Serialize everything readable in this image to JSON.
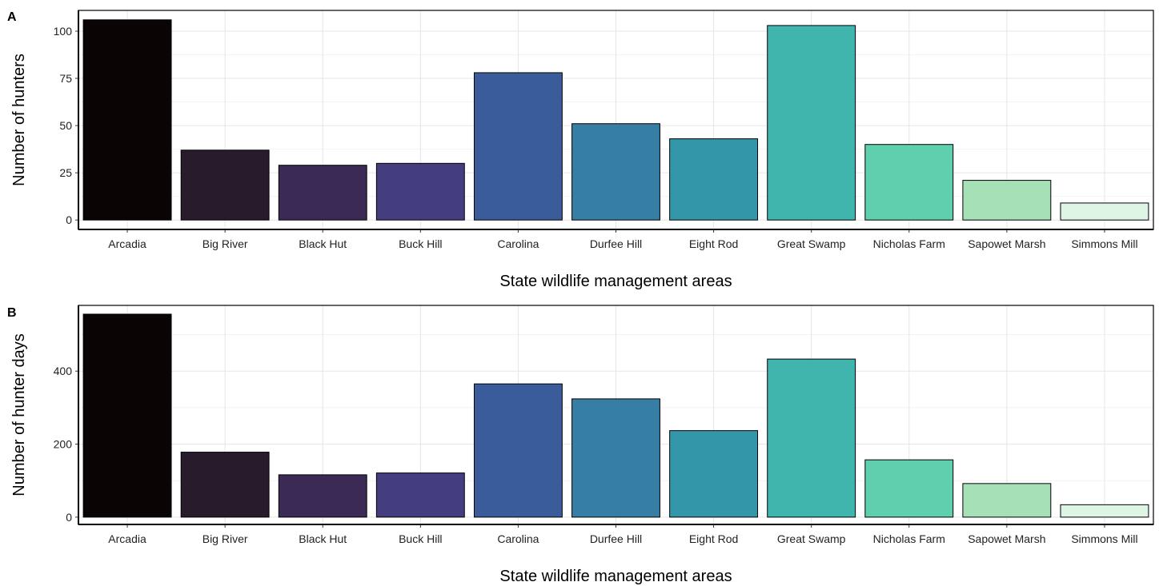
{
  "chart_data": [
    {
      "type": "bar",
      "panel_label": "A",
      "categories": [
        "Arcadia",
        "Big River",
        "Black Hut",
        "Buck Hill",
        "Carolina",
        "Durfee Hill",
        "Eight Rod",
        "Great Swamp",
        "Nicholas Farm",
        "Sapowet Marsh",
        "Simmons Mill"
      ],
      "values": [
        106,
        37,
        29,
        30,
        78,
        51,
        43,
        103,
        40,
        21,
        9
      ],
      "xlabel": "State wildlife management areas",
      "ylabel": "Number of hunters",
      "ylim": [
        -5,
        111
      ],
      "yticks": [
        0,
        25,
        50,
        75,
        100
      ],
      "grid": true
    },
    {
      "type": "bar",
      "panel_label": "B",
      "categories": [
        "Arcadia",
        "Big River",
        "Black Hut",
        "Buck Hill",
        "Carolina",
        "Durfee Hill",
        "Eight Rod",
        "Great Swamp",
        "Nicholas Farm",
        "Sapowet Marsh",
        "Simmons Mill"
      ],
      "values": [
        556,
        178,
        116,
        121,
        365,
        324,
        237,
        433,
        157,
        92,
        34
      ],
      "xlabel": "State wildlife management areas",
      "ylabel": "Number of hunter days",
      "ylim": [
        -20,
        580
      ],
      "yticks": [
        0,
        200,
        400
      ],
      "grid": true
    }
  ],
  "colors": [
    "#0b0405",
    "#271b2c",
    "#3b2a55",
    "#443e80",
    "#3a5c9b",
    "#377ea5",
    "#3497a9",
    "#40b5ae",
    "#60cfad",
    "#a6e0b7",
    "#def5e6"
  ]
}
